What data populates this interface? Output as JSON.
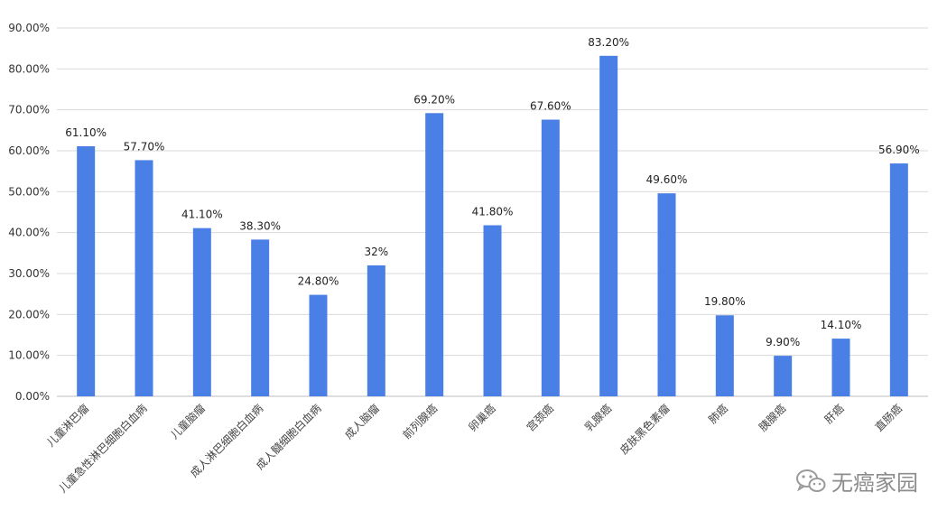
{
  "chart_data": {
    "type": "bar",
    "categories": [
      "儿童淋巴瘤",
      "儿童急性淋巴细胞白血病",
      "儿童脑瘤",
      "成人淋巴细胞白血病",
      "成人髓细胞白血病",
      "成人脑瘤",
      "前列腺癌",
      "卵巢癌",
      "宫颈癌",
      "乳腺癌",
      "皮肤黑色素瘤",
      "肺癌",
      "胰腺癌",
      "肝癌",
      "直肠癌"
    ],
    "values": [
      61.1,
      57.7,
      41.1,
      38.3,
      24.8,
      32,
      69.2,
      41.8,
      67.6,
      83.2,
      49.6,
      19.8,
      9.9,
      14.1,
      56.9
    ],
    "value_labels": [
      "61.10%",
      "57.70%",
      "41.10%",
      "38.30%",
      "24.80%",
      "32%",
      "69.20%",
      "41.80%",
      "67.60%",
      "83.20%",
      "49.60%",
      "19.80%",
      "9.90%",
      "14.10%",
      "56.90%"
    ],
    "y_ticks": [
      "0.00%",
      "10.00%",
      "20.00%",
      "30.00%",
      "40.00%",
      "50.00%",
      "60.00%",
      "70.00%",
      "80.00%",
      "90.00%"
    ],
    "ylim": [
      0,
      90
    ],
    "grid": true,
    "bar_color": "#4a7fe6"
  },
  "watermark": {
    "text": "无癌家园",
    "icon": "wechat-icon"
  }
}
